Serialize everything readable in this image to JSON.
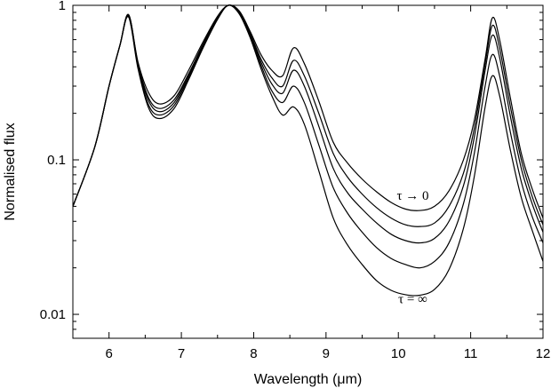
{
  "chart_data": {
    "type": "line",
    "title": "",
    "xlabel": "Wavelength (μm)",
    "ylabel": "Normalised flux",
    "xlim": [
      5.5,
      12
    ],
    "ylim": [
      0.007,
      1
    ],
    "yscale": "log",
    "grid": false,
    "legend": "none",
    "line_color": "#000000",
    "xticks": [
      6,
      7,
      8,
      9,
      10,
      11,
      12
    ],
    "xtick_labels": [
      "6",
      "7",
      "8",
      "9",
      "10",
      "11",
      "12"
    ],
    "yticks": [
      0.01,
      0.1,
      1
    ],
    "ytick_labels": [
      "0.01",
      "0.1",
      "1"
    ],
    "annotations": [
      {
        "text": "τ → 0",
        "x": 10.2,
        "y": 0.055
      },
      {
        "text": "τ = ∞",
        "x": 10.2,
        "y": 0.0118
      }
    ],
    "series": [
      {
        "x": [
          5.5,
          5.8,
          6.0,
          6.15,
          6.27,
          6.4,
          6.55,
          6.7,
          6.9,
          7.1,
          7.3,
          7.5,
          7.65,
          7.8,
          7.95,
          8.1,
          8.25,
          8.4,
          8.55,
          8.7,
          8.9,
          9.1,
          9.3,
          9.5,
          9.7,
          9.9,
          10.1,
          10.3,
          10.5,
          10.7,
          10.9,
          11.05,
          11.2,
          11.3,
          11.4,
          11.55,
          11.7,
          11.85,
          12.0
        ],
        "y": [
          0.05,
          0.12,
          0.3,
          0.55,
          0.87,
          0.43,
          0.27,
          0.23,
          0.26,
          0.38,
          0.58,
          0.85,
          1.0,
          0.92,
          0.68,
          0.48,
          0.38,
          0.35,
          0.53,
          0.42,
          0.24,
          0.13,
          0.095,
          0.075,
          0.062,
          0.053,
          0.048,
          0.047,
          0.05,
          0.063,
          0.1,
          0.18,
          0.45,
          0.83,
          0.6,
          0.25,
          0.11,
          0.065,
          0.042
        ]
      },
      {
        "x": [
          5.5,
          5.8,
          6.0,
          6.15,
          6.27,
          6.4,
          6.55,
          6.7,
          6.9,
          7.1,
          7.3,
          7.5,
          7.65,
          7.8,
          7.95,
          8.1,
          8.25,
          8.4,
          8.55,
          8.7,
          8.9,
          9.1,
          9.3,
          9.5,
          9.7,
          9.9,
          10.1,
          10.3,
          10.5,
          10.7,
          10.9,
          11.05,
          11.2,
          11.3,
          11.4,
          11.55,
          11.7,
          11.85,
          12.0
        ],
        "y": [
          0.05,
          0.12,
          0.3,
          0.55,
          0.87,
          0.42,
          0.25,
          0.215,
          0.245,
          0.36,
          0.56,
          0.84,
          1.0,
          0.91,
          0.66,
          0.45,
          0.34,
          0.3,
          0.44,
          0.35,
          0.2,
          0.11,
          0.077,
          0.06,
          0.049,
          0.042,
          0.038,
          0.037,
          0.039,
          0.05,
          0.082,
          0.16,
          0.42,
          0.74,
          0.53,
          0.22,
          0.1,
          0.058,
          0.038
        ]
      },
      {
        "x": [
          5.5,
          5.8,
          6.0,
          6.15,
          6.27,
          6.4,
          6.55,
          6.7,
          6.9,
          7.1,
          7.3,
          7.5,
          7.65,
          7.8,
          7.95,
          8.1,
          8.25,
          8.4,
          8.55,
          8.7,
          8.9,
          9.1,
          9.3,
          9.5,
          9.7,
          9.9,
          10.1,
          10.3,
          10.5,
          10.7,
          10.9,
          11.05,
          11.2,
          11.3,
          11.4,
          11.55,
          11.7,
          11.85,
          12.0
        ],
        "y": [
          0.05,
          0.12,
          0.3,
          0.55,
          0.86,
          0.41,
          0.24,
          0.205,
          0.235,
          0.35,
          0.55,
          0.83,
          1.0,
          0.9,
          0.65,
          0.43,
          0.31,
          0.27,
          0.38,
          0.3,
          0.165,
          0.088,
          0.061,
          0.048,
          0.039,
          0.033,
          0.03,
          0.029,
          0.031,
          0.04,
          0.068,
          0.14,
          0.38,
          0.64,
          0.46,
          0.19,
          0.088,
          0.052,
          0.034
        ]
      },
      {
        "x": [
          5.5,
          5.8,
          6.0,
          6.15,
          6.27,
          6.4,
          6.55,
          6.7,
          6.9,
          7.1,
          7.3,
          7.5,
          7.65,
          7.8,
          7.95,
          8.1,
          8.25,
          8.4,
          8.55,
          8.7,
          8.9,
          9.1,
          9.3,
          9.5,
          9.7,
          9.9,
          10.1,
          10.3,
          10.5,
          10.7,
          10.9,
          11.05,
          11.2,
          11.3,
          11.4,
          11.55,
          11.7,
          11.85,
          12.0
        ],
        "y": [
          0.05,
          0.12,
          0.3,
          0.55,
          0.85,
          0.4,
          0.225,
          0.195,
          0.225,
          0.34,
          0.54,
          0.82,
          1.0,
          0.89,
          0.63,
          0.41,
          0.28,
          0.235,
          0.3,
          0.235,
          0.125,
          0.066,
          0.045,
          0.034,
          0.027,
          0.023,
          0.021,
          0.02,
          0.022,
          0.029,
          0.052,
          0.11,
          0.3,
          0.48,
          0.35,
          0.15,
          0.072,
          0.043,
          0.029
        ]
      },
      {
        "x": [
          5.5,
          5.8,
          6.0,
          6.15,
          6.27,
          6.4,
          6.55,
          6.7,
          6.9,
          7.1,
          7.3,
          7.5,
          7.65,
          7.8,
          7.95,
          8.1,
          8.25,
          8.4,
          8.55,
          8.7,
          8.9,
          9.1,
          9.3,
          9.5,
          9.7,
          9.9,
          10.1,
          10.3,
          10.5,
          10.7,
          10.9,
          11.05,
          11.2,
          11.3,
          11.4,
          11.55,
          11.7,
          11.85,
          12.0
        ],
        "y": [
          0.05,
          0.12,
          0.3,
          0.55,
          0.84,
          0.39,
          0.215,
          0.185,
          0.215,
          0.33,
          0.53,
          0.81,
          1.0,
          0.88,
          0.62,
          0.39,
          0.26,
          0.195,
          0.22,
          0.17,
          0.085,
          0.042,
          0.028,
          0.021,
          0.0165,
          0.0143,
          0.0134,
          0.0133,
          0.0145,
          0.0195,
          0.036,
          0.078,
          0.22,
          0.35,
          0.26,
          0.115,
          0.057,
          0.035,
          0.022
        ]
      }
    ]
  }
}
